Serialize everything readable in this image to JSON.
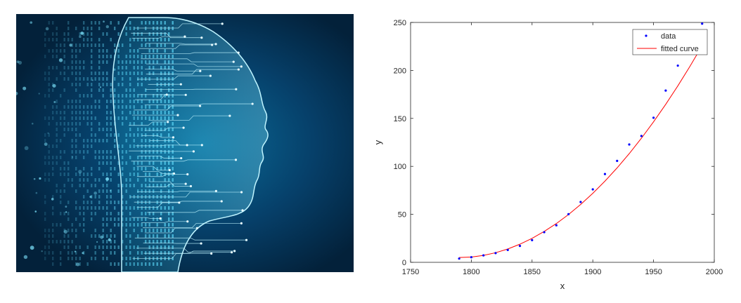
{
  "image": {
    "subject": "ai-circuit-head-icon",
    "colors": {
      "background_dark": "#03213a",
      "background_glow": "#0a6d9a",
      "circuit": "#bff4ff"
    }
  },
  "chart_data": {
    "type": "scatter",
    "title": "",
    "xlabel": "x",
    "ylabel": "y",
    "xlim": [
      1750,
      2000
    ],
    "ylim": [
      0,
      250
    ],
    "xticks": [
      "1750",
      "1800",
      "1850",
      "1900",
      "1950",
      "2000"
    ],
    "yticks": [
      "0",
      "50",
      "100",
      "150",
      "200",
      "250"
    ],
    "legend": {
      "placement": "top-right",
      "entries": [
        "data",
        "fitted curve"
      ]
    },
    "colors": {
      "data": "#0000ff",
      "fit": "#ff0000"
    },
    "series": [
      {
        "name": "data",
        "x": [
          1790,
          1800,
          1810,
          1820,
          1830,
          1840,
          1850,
          1860,
          1870,
          1880,
          1890,
          1900,
          1910,
          1920,
          1930,
          1940,
          1950,
          1960,
          1970,
          1980,
          1990
        ],
        "y": [
          3.9,
          5.3,
          7.2,
          9.6,
          12.9,
          17.1,
          23.1,
          31.4,
          38.6,
          50.2,
          62.9,
          76.0,
          92.0,
          105.7,
          122.8,
          131.7,
          150.7,
          179.0,
          205.0,
          226.5,
          248.7
        ]
      },
      {
        "name": "fitted curve",
        "x": [
          1790,
          1800,
          1810,
          1820,
          1830,
          1840,
          1850,
          1860,
          1870,
          1880,
          1890,
          1900,
          1910,
          1920,
          1930,
          1940,
          1950,
          1960,
          1970,
          1980,
          1990
        ],
        "y": [
          5.0,
          5.5,
          7.2,
          10.0,
          13.9,
          18.9,
          25.0,
          32.2,
          40.4,
          49.8,
          60.3,
          71.9,
          84.6,
          98.4,
          113.3,
          129.3,
          146.4,
          164.6,
          183.9,
          204.3,
          225.8
        ]
      }
    ]
  }
}
